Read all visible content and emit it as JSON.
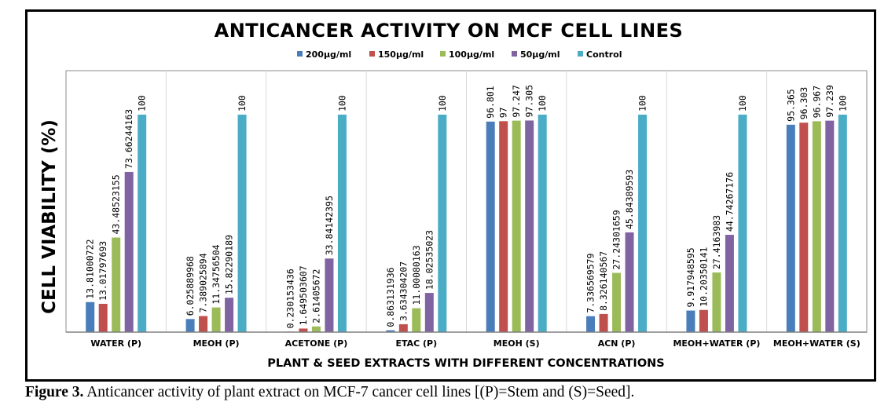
{
  "figure": {
    "caption_label": "Figure 3.",
    "caption_text": " Anticancer activity of plant extract on MCF-7 cancer cell lines [(P)=Stem and (S)=Seed]."
  },
  "chart_data": {
    "type": "bar",
    "title": "ANTICANCER ACTIVITY ON MCF CELL LINES",
    "xlabel": "PLANT & SEED EXTRACTS WITH DIFFERENT CONCENTRATIONS",
    "ylabel": "CELL VIABILITY (%)",
    "ylim": [
      0,
      100
    ],
    "grid": "vertical category separators only",
    "legend_position": "top-center",
    "y_axis_ticks_visible": false,
    "categories": [
      "WATER (P)",
      "MEOH (P)",
      "ACETONE (P)",
      "ETAC (P)",
      "MEOH (S)",
      "ACN (P)",
      "MEOH+WATER (P)",
      "MEOH+WATER (S)"
    ],
    "series": [
      {
        "name": "200µg/ml",
        "color": "#4a7ebb",
        "values": [
          13.81000722,
          6.025889968,
          0.230153436,
          0.863131936,
          96.801,
          7.336569579,
          9.917948595,
          95.365
        ],
        "labels": [
          "13.81000722",
          "6.025889968",
          "0.230153436",
          "0.863131936",
          "96.801",
          "7.336569579",
          "9.917948595",
          "95.365"
        ]
      },
      {
        "name": "150µg/ml",
        "color": "#c0504d",
        "values": [
          13.01797693,
          7.389025894,
          1.649503607,
          3.634304207,
          97,
          8.326140567,
          10.20350141,
          96.303
        ],
        "labels": [
          "13.01797693",
          "7.389025894",
          "1.649503607",
          "3.634304207",
          "97",
          "8.326140567",
          "10.20350141",
          "96.303"
        ]
      },
      {
        "name": "100µg/ml",
        "color": "#9bbb59",
        "values": [
          43.48523155,
          11.34756504,
          2.61405672,
          11.00080163,
          97.247,
          27.24301659,
          27.4163983,
          96.967
        ],
        "labels": [
          "43.48523155",
          "11.34756504",
          "2.61405672",
          "11.00080163",
          "97.247",
          "27.24301659",
          "27.4163983",
          "96.967"
        ]
      },
      {
        "name": "50µg/ml",
        "color": "#8064a2",
        "values": [
          73.66244163,
          15.82290189,
          33.84142395,
          18.02535023,
          97.305,
          45.84389593,
          44.74267176,
          97.239
        ],
        "labels": [
          "73.66244163",
          "15.82290189",
          "33.84142395",
          "18.02535023",
          "97.305",
          "45.84389593",
          "44.74267176",
          "97.239"
        ]
      },
      {
        "name": "Control",
        "color": "#4bacc6",
        "values": [
          100,
          100,
          100,
          100,
          100,
          100,
          100,
          100
        ],
        "labels": [
          "100",
          "100",
          "100",
          "100",
          "100",
          "100",
          "100",
          "100"
        ]
      }
    ]
  }
}
